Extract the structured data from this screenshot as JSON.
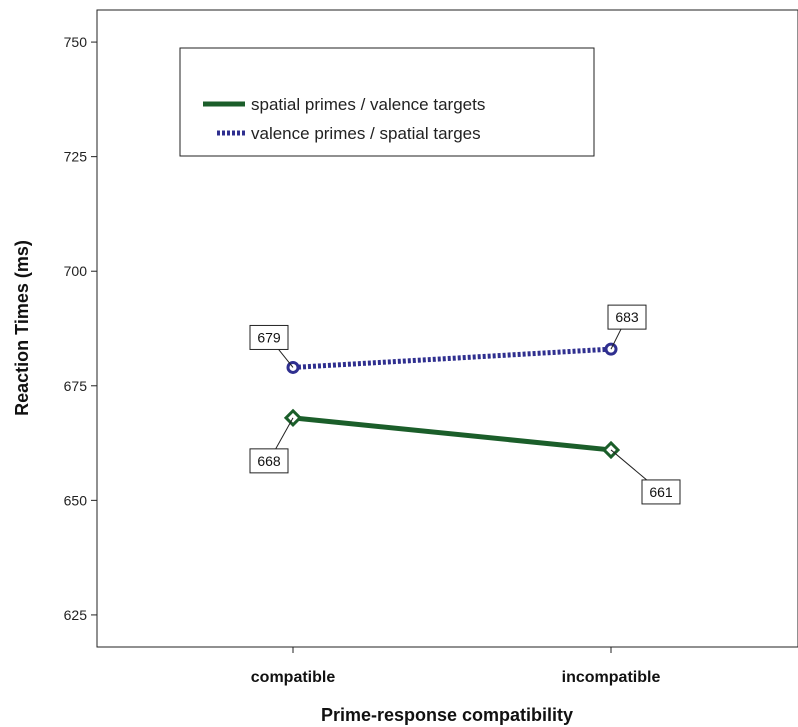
{
  "chart_data": {
    "type": "line",
    "categories": [
      "compatible",
      "incompatible"
    ],
    "xlabel": "Prime-response compatibility",
    "ylabel": "Reaction Times (ms)",
    "ylim": [
      618,
      757
    ],
    "yticks": [
      625,
      650,
      675,
      700,
      725,
      750
    ],
    "legend_position": "top-left",
    "grid": false,
    "series": [
      {
        "name": "spatial primes / valence targets",
        "values": [
          668,
          661
        ],
        "color": "#1b5e2a",
        "line_style": "solid",
        "marker": "diamond",
        "labels": [
          "668",
          "661"
        ]
      },
      {
        "name": "valence primes / spatial targes",
        "values": [
          679,
          683
        ],
        "color": "#2f2f8f",
        "line_style": "dotted",
        "marker": "circle",
        "labels": [
          "679",
          "683"
        ]
      }
    ]
  }
}
